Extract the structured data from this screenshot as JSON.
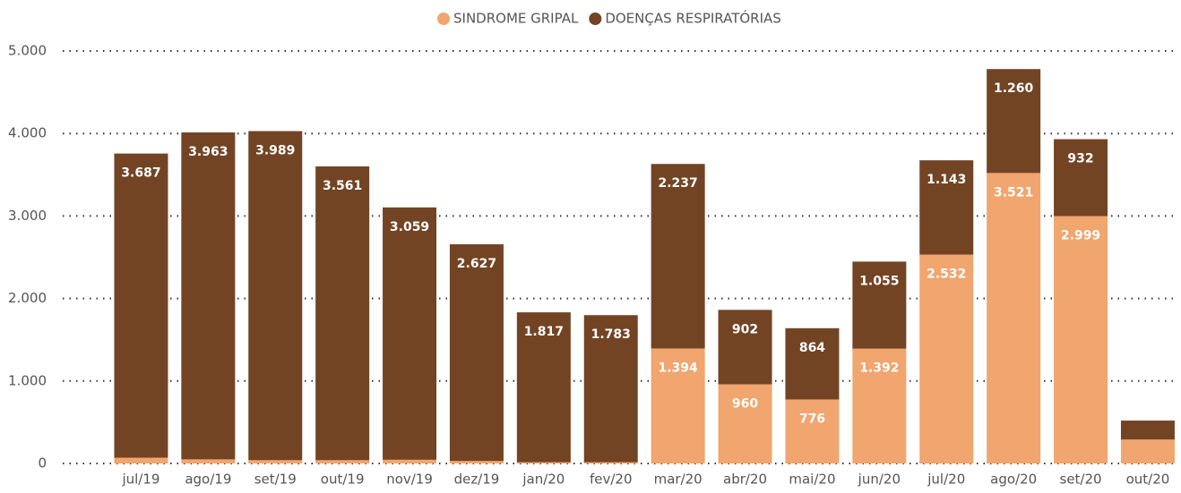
{
  "chart_data": {
    "type": "stacked_bar",
    "categories": [
      "jul/19",
      "ago/19",
      "set/19",
      "out/19",
      "nov/19",
      "dez/19",
      "jan/20",
      "fev/20",
      "mar/20",
      "abr/20",
      "mai/20",
      "jun/20",
      "jul/20",
      "ago/20",
      "set/20",
      "out/20"
    ],
    "series": [
      {
        "name": "SINDROME GRIPAL",
        "color": "#f1a56f",
        "values": [
          70,
          50,
          40,
          40,
          45,
          30,
          15,
          15,
          1394,
          960,
          776,
          1392,
          2532,
          3521,
          2999,
          290
        ],
        "value_labels": [
          null,
          null,
          null,
          null,
          null,
          null,
          null,
          null,
          "1.394",
          "960",
          "776",
          "1.392",
          "2.532",
          "3.521",
          "2.999",
          null
        ]
      },
      {
        "name": "DOENÇAS RESPIRATÓRIAS",
        "color": "#734424",
        "values": [
          3687,
          3963,
          3989,
          3561,
          3059,
          2627,
          1817,
          1783,
          2237,
          902,
          864,
          1055,
          1143,
          1260,
          932,
          230
        ],
        "value_labels": [
          "3.687",
          "3.963",
          "3.989",
          "3.561",
          "3.059",
          "2.627",
          "1.817",
          "1.783",
          "2.237",
          "902",
          "864",
          "1.055",
          "1.143",
          "1.260",
          "932",
          null
        ]
      }
    ],
    "ylim": [
      0,
      5000
    ],
    "yticks": [
      0,
      {
        "value": 1000,
        "label": "1.000"
      },
      {
        "value": 2000,
        "label": "2.000"
      },
      {
        "value": 3000,
        "label": "3.000"
      },
      {
        "value": 4000,
        "label": "4.000"
      },
      {
        "value": 5000,
        "label": "5.000"
      }
    ],
    "grid": true,
    "legend": "top"
  }
}
